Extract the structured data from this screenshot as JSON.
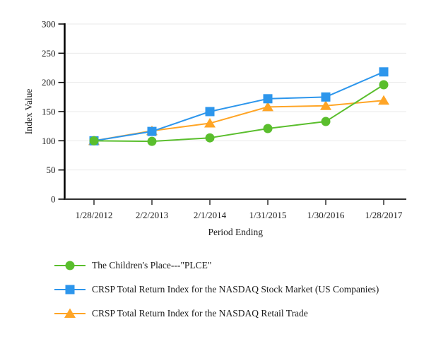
{
  "chart_data": {
    "type": "line",
    "title": "",
    "xlabel": "Period Ending",
    "ylabel": "Index Value",
    "ylim": [
      0,
      300
    ],
    "yticks": [
      0,
      50,
      100,
      150,
      200,
      250,
      300
    ],
    "grid": "horizontal",
    "legend_position": "bottom-left",
    "categories": [
      "1/28/2012",
      "2/2/2013",
      "2/1/2014",
      "1/31/2015",
      "1/30/2016",
      "1/28/2017"
    ],
    "series": [
      {
        "name": "The Children's Place---\"PLCE\"",
        "marker": "circle",
        "color": "#5ABE2D",
        "values": [
          100,
          99,
          105,
          121,
          133,
          196
        ]
      },
      {
        "name": "CRSP Total Return Index for the NASDAQ Stock Market (US Companies)",
        "marker": "square",
        "color": "#2D96EC",
        "values": [
          100,
          116,
          150,
          172,
          175,
          218
        ]
      },
      {
        "name": "CRSP Total Return Index for the NASDAQ Retail Trade",
        "marker": "triangle",
        "color": "#FFA526",
        "values": [
          100,
          117,
          130,
          158,
          160,
          169
        ]
      }
    ],
    "colors": {
      "axis": "#1a1a1a",
      "gridline": "#eaeaea",
      "text": "#1a1a1a"
    }
  }
}
